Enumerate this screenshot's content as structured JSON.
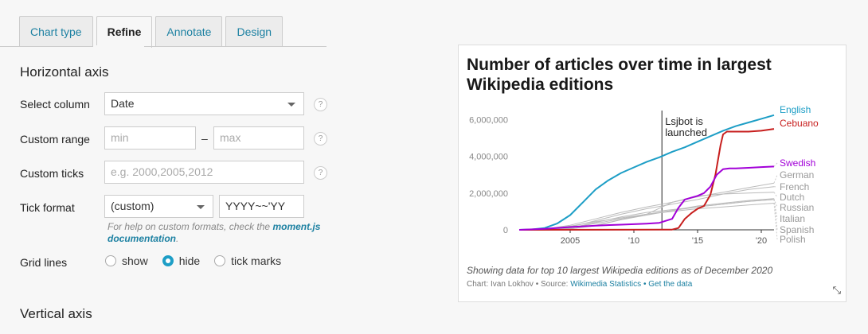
{
  "tabs": [
    {
      "label": "Chart type",
      "active": false
    },
    {
      "label": "Refine",
      "active": true
    },
    {
      "label": "Annotate",
      "active": false
    },
    {
      "label": "Design",
      "active": false
    }
  ],
  "horizontal_axis": {
    "title": "Horizontal axis",
    "select_column": {
      "label": "Select column",
      "value": "Date"
    },
    "custom_range": {
      "label": "Custom range",
      "min_placeholder": "min",
      "separator": "–",
      "max_placeholder": "max"
    },
    "custom_ticks": {
      "label": "Custom ticks",
      "placeholder": "e.g. 2000,2005,2012"
    },
    "tick_format": {
      "label": "Tick format",
      "value": "(custom)",
      "format_value": "YYYY~~'YY"
    },
    "help_note": "For help on custom formats, check the",
    "help_link": "moment.js documentation",
    "help_end": ".",
    "grid_lines": {
      "label": "Grid lines",
      "options": [
        "show",
        "hide",
        "tick marks"
      ],
      "selected": "hide"
    },
    "help_icon": "?"
  },
  "vertical_axis": {
    "title": "Vertical axis"
  },
  "chart": {
    "title": "Number of articles over time in largest Wikipedia editions",
    "description": "Showing data for top 10 largest Wikipedia editions as of December 2020",
    "source_prefix": "Chart: Ivan Lokhov • Source:",
    "source_link": "Wikimedia Statistics",
    "source_sep": "•",
    "get_data": "Get the data",
    "resize_icon": "⤡"
  },
  "chart_data": {
    "type": "line",
    "title": "Number of articles over time in largest Wikipedia editions",
    "xlim": [
      2001,
      2021
    ],
    "ylim": [
      0,
      6500000
    ],
    "y_ticks": [
      0,
      2000000,
      4000000,
      6000000
    ],
    "y_tick_labels": [
      "0",
      "2,000,000",
      "4,000,000",
      "6,000,000"
    ],
    "x_ticks": [
      2005,
      2010,
      2015,
      2020
    ],
    "x_tick_labels": [
      "2005",
      "'10",
      "'15",
      "'20"
    ],
    "grid": false,
    "annotation": {
      "x": 2012.2,
      "text": [
        "Lsjbot is",
        "launched"
      ]
    },
    "series": [
      {
        "name": "English",
        "color": "#1d9ec6",
        "label_color": "#1d9ec6",
        "x": [
          2001,
          2002,
          2003,
          2004,
          2005,
          2006,
          2007,
          2008,
          2009,
          2010,
          2011,
          2012,
          2013,
          2014,
          2015,
          2016,
          2017,
          2018,
          2019,
          2020,
          2021
        ],
        "y": [
          0,
          20000,
          100000,
          350000,
          800000,
          1500000,
          2200000,
          2700000,
          3100000,
          3400000,
          3700000,
          3950000,
          4250000,
          4500000,
          4800000,
          5100000,
          5400000,
          5650000,
          5850000,
          6050000,
          6250000
        ]
      },
      {
        "name": "Cebuano",
        "color": "#c71e1d",
        "label_color": "#c71e1d",
        "x": [
          2001,
          2012,
          2013,
          2013.5,
          2014,
          2014.5,
          2015,
          2015.5,
          2016,
          2016.4,
          2016.8,
          2017,
          2017.3,
          2018,
          2019,
          2020,
          2021
        ],
        "y": [
          0,
          10000,
          15000,
          100000,
          600000,
          900000,
          1150000,
          1300000,
          1900000,
          3000000,
          4600000,
          5200000,
          5350000,
          5350000,
          5350000,
          5400000,
          5500000
        ]
      },
      {
        "name": "Swedish",
        "color": "#a200d8",
        "label_color": "#a200d8",
        "x": [
          2001,
          2003,
          2005,
          2007,
          2009,
          2011,
          2012,
          2013,
          2013.5,
          2014,
          2014.5,
          2015,
          2015.5,
          2016,
          2016.5,
          2017,
          2017.5,
          2018,
          2019,
          2020,
          2021
        ],
        "y": [
          0,
          50000,
          150000,
          230000,
          280000,
          340000,
          380000,
          600000,
          1200000,
          1650000,
          1750000,
          1850000,
          2000000,
          2350000,
          3000000,
          3300000,
          3350000,
          3350000,
          3380000,
          3420000,
          3450000
        ]
      },
      {
        "name": "German",
        "color": "#bbbbbb",
        "label_color": "#999999",
        "x": [
          2001,
          2003,
          2005,
          2007,
          2009,
          2011,
          2013,
          2015,
          2017,
          2019,
          2021
        ],
        "y": [
          0,
          40000,
          250000,
          600000,
          950000,
          1250000,
          1500000,
          1800000,
          2050000,
          2300000,
          2550000
        ]
      },
      {
        "name": "French",
        "color": "#bbbbbb",
        "label_color": "#999999",
        "x": [
          2001,
          2003,
          2005,
          2007,
          2009,
          2011,
          2013,
          2015,
          2017,
          2019,
          2021
        ],
        "y": [
          0,
          20000,
          150000,
          500000,
          850000,
          1150000,
          1400000,
          1650000,
          1950000,
          2200000,
          2350000
        ]
      },
      {
        "name": "Dutch",
        "color": "#bbbbbb",
        "label_color": "#999999",
        "x": [
          2001,
          2003,
          2005,
          2007,
          2009,
          2011,
          2013,
          2015,
          2017,
          2019,
          2021
        ],
        "y": [
          0,
          10000,
          100000,
          350000,
          600000,
          850000,
          1500000,
          1850000,
          1950000,
          2000000,
          2050000
        ]
      },
      {
        "name": "Russian",
        "color": "#bbbbbb",
        "label_color": "#999999",
        "x": [
          2001,
          2003,
          2005,
          2007,
          2009,
          2011,
          2013,
          2015,
          2017,
          2019,
          2021
        ],
        "y": [
          0,
          5000,
          50000,
          220000,
          550000,
          800000,
          1050000,
          1300000,
          1450000,
          1600000,
          1700000
        ]
      },
      {
        "name": "Italian",
        "color": "#bbbbbb",
        "label_color": "#999999",
        "x": [
          2001,
          2003,
          2005,
          2007,
          2009,
          2011,
          2013,
          2015,
          2017,
          2019,
          2021
        ],
        "y": [
          0,
          10000,
          100000,
          400000,
          700000,
          950000,
          1100000,
          1250000,
          1400000,
          1550000,
          1650000
        ]
      },
      {
        "name": "Spanish",
        "color": "#bbbbbb",
        "label_color": "#999999",
        "x": [
          2001,
          2003,
          2005,
          2007,
          2009,
          2011,
          2013,
          2015,
          2017,
          2019,
          2021
        ],
        "y": [
          0,
          10000,
          50000,
          250000,
          550000,
          850000,
          1050000,
          1250000,
          1400000,
          1550000,
          1650000
        ]
      },
      {
        "name": "Polish",
        "color": "#bbbbbb",
        "label_color": "#999999",
        "x": [
          2001,
          2003,
          2005,
          2007,
          2009,
          2011,
          2013,
          2015,
          2017,
          2019,
          2021
        ],
        "y": [
          0,
          20000,
          200000,
          450000,
          650000,
          850000,
          1000000,
          1150000,
          1250000,
          1350000,
          1450000
        ]
      }
    ]
  }
}
